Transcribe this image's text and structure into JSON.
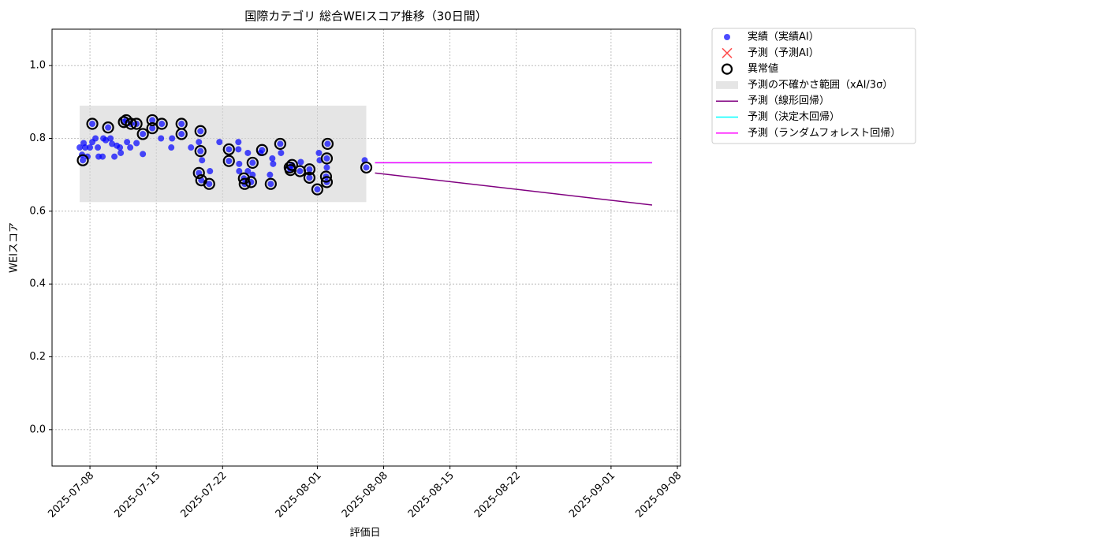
{
  "chart_data": {
    "type": "scatter",
    "title": "国際カテゴリ 総合WEIスコア推移（30日間）",
    "x_label": "評価日",
    "y_label": "WEIスコア",
    "xlim": [
      "2025-07-04 00:00",
      "2025-09-08 08:00"
    ],
    "xticks": [
      "2025-07-08",
      "2025-07-15",
      "2025-07-22",
      "2025-08-01",
      "2025-08-08",
      "2025-08-15",
      "2025-08-22",
      "2025-09-01",
      "2025-09-08"
    ],
    "ylim": [
      -0.1,
      1.1
    ],
    "yticks": [
      {
        "value": 0,
        "label": "0.0"
      },
      0.2,
      0.4,
      0.6,
      0.8,
      {
        "value": 1,
        "label": "1.0"
      }
    ],
    "grid": true,
    "legend": "outside-upper-right",
    "series": [
      {
        "name": "実績（実績AI）",
        "kind": "dot",
        "color": "#0000ff",
        "x": [
          "2025-07-06 22:00",
          "2025-07-07 04:00",
          "2025-07-07 08:00",
          "2025-07-07 12:00",
          "2025-07-07 18:00",
          "2025-07-08 00:00",
          "2025-07-08 06:00",
          "2025-07-08 14:00",
          "2025-07-08 20:00",
          "2025-07-08 22:00",
          "2025-07-09 08:00",
          "2025-07-09 10:00",
          "2025-07-09 16:00",
          "2025-07-10 04:00",
          "2025-07-10 08:00",
          "2025-07-10 14:00",
          "2025-07-10 20:00",
          "2025-07-11 04:00",
          "2025-07-11 06:00",
          "2025-07-11 22:00",
          "2025-07-12 06:00",
          "2025-07-12 22:00",
          "2025-07-13 14:00",
          "2025-07-15 12:00",
          "2025-07-16 14:00",
          "2025-07-16 16:00",
          "2025-07-18 16:00",
          "2025-07-19 12:00",
          "2025-07-19 20:00",
          "2025-07-20 16:00",
          "2025-07-21 16:00",
          "2025-07-23 16:00",
          "2025-07-23 16:00",
          "2025-07-23 18:00",
          "2025-07-23 18:00",
          "2025-07-24 16:00",
          "2025-07-24 16:00",
          "2025-07-25 04:00",
          "2025-07-26 00:00",
          "2025-07-27 00:00",
          "2025-07-27 06:00",
          "2025-07-27 08:00",
          "2025-07-28 04:00",
          "2025-07-30 06:00",
          "2025-08-01 04:00",
          "2025-08-01 06:00",
          "2025-08-02 00:00",
          "2025-08-06 00:00",
          "2025-07-07 06:00",
          "2025-07-08 06:00",
          "2025-07-09 22:00",
          "2025-07-11 14:00",
          "2025-07-11 20:00",
          "2025-07-12 08:00",
          "2025-07-12 22:00",
          "2025-07-13 14:00",
          "2025-07-14 14:00",
          "2025-07-14 14:00",
          "2025-07-15 14:00",
          "2025-07-17 16:00",
          "2025-07-17 16:00",
          "2025-07-19 12:00",
          "2025-07-19 16:00",
          "2025-07-19 16:00",
          "2025-07-19 18:00",
          "2025-07-20 14:00",
          "2025-07-22 16:00",
          "2025-07-22 16:00",
          "2025-07-24 06:00",
          "2025-07-24 08:00",
          "2025-07-25 00:00",
          "2025-07-25 04:00",
          "2025-07-26 04:00",
          "2025-07-27 02:00",
          "2025-07-28 02:00",
          "2025-07-29 02:00",
          "2025-07-29 04:00",
          "2025-07-29 08:00",
          "2025-07-30 04:00",
          "2025-07-31 04:00",
          "2025-07-31 04:00",
          "2025-08-01 00:00",
          "2025-08-01 22:00",
          "2025-08-02 00:00",
          "2025-08-02 00:00",
          "2025-08-02 02:00",
          "2025-08-06 04:00"
        ],
        "values": [
          0.775,
          0.755,
          0.787,
          0.775,
          0.75,
          0.775,
          0.79,
          0.8,
          0.775,
          0.75,
          0.75,
          0.8,
          0.795,
          0.8,
          0.785,
          0.75,
          0.78,
          0.775,
          0.76,
          0.79,
          0.775,
          0.787,
          0.757,
          0.8,
          0.775,
          0.8,
          0.775,
          0.79,
          0.74,
          0.71,
          0.79,
          0.79,
          0.77,
          0.73,
          0.71,
          0.76,
          0.71,
          0.7,
          0.76,
          0.7,
          0.745,
          0.73,
          0.76,
          0.735,
          0.76,
          0.74,
          0.72,
          0.74,
          0.74,
          0.84,
          0.83,
          0.845,
          0.85,
          0.84,
          0.84,
          0.812,
          0.85,
          0.828,
          0.84,
          0.84,
          0.812,
          0.705,
          0.82,
          0.765,
          0.685,
          0.675,
          0.77,
          0.738,
          0.69,
          0.675,
          0.68,
          0.733,
          0.768,
          0.675,
          0.785,
          0.72,
          0.713,
          0.727,
          0.71,
          0.715,
          0.692,
          0.66,
          0.695,
          0.68,
          0.745,
          0.785,
          0.72
        ]
      },
      {
        "name": "予測（予測AI）",
        "kind": "cross",
        "color": "#ff0000",
        "x": [],
        "values": []
      },
      {
        "name": "異常値",
        "kind": "ring",
        "color": "#000000",
        "x": [
          "2025-07-07 06:00",
          "2025-07-08 06:00",
          "2025-07-09 22:00",
          "2025-07-11 14:00",
          "2025-07-11 20:00",
          "2025-07-12 08:00",
          "2025-07-12 22:00",
          "2025-07-13 14:00",
          "2025-07-14 14:00",
          "2025-07-14 14:00",
          "2025-07-15 14:00",
          "2025-07-17 16:00",
          "2025-07-17 16:00",
          "2025-07-19 12:00",
          "2025-07-19 16:00",
          "2025-07-19 16:00",
          "2025-07-19 18:00",
          "2025-07-20 14:00",
          "2025-07-22 16:00",
          "2025-07-22 16:00",
          "2025-07-24 06:00",
          "2025-07-24 08:00",
          "2025-07-25 00:00",
          "2025-07-25 04:00",
          "2025-07-26 04:00",
          "2025-07-27 02:00",
          "2025-07-28 02:00",
          "2025-07-29 02:00",
          "2025-07-29 04:00",
          "2025-07-29 08:00",
          "2025-07-30 04:00",
          "2025-07-31 04:00",
          "2025-07-31 04:00",
          "2025-08-01 00:00",
          "2025-08-01 22:00",
          "2025-08-02 00:00",
          "2025-08-02 00:00",
          "2025-08-02 02:00",
          "2025-08-06 04:00"
        ],
        "values": [
          0.74,
          0.84,
          0.83,
          0.845,
          0.85,
          0.84,
          0.84,
          0.812,
          0.85,
          0.828,
          0.84,
          0.84,
          0.812,
          0.705,
          0.82,
          0.765,
          0.685,
          0.675,
          0.77,
          0.738,
          0.69,
          0.675,
          0.68,
          0.733,
          0.768,
          0.675,
          0.785,
          0.72,
          0.713,
          0.727,
          0.71,
          0.715,
          0.692,
          0.66,
          0.695,
          0.68,
          0.745,
          0.785,
          0.72
        ]
      },
      {
        "name": "予測の不確かさ範囲（xAI/3σ）",
        "kind": "band",
        "color": "#d3d3d3",
        "x": [
          "2025-07-06 22:00",
          "2025-08-06 04:00"
        ],
        "lower": 0.625,
        "upper": 0.89
      },
      {
        "name": "予測（線形回帰）",
        "kind": "line",
        "color": "#800080",
        "x": [
          "2025-08-07 02:00",
          "2025-09-05 08:00"
        ],
        "values": [
          0.705,
          0.617
        ]
      },
      {
        "name": "予測（決定木回帰）",
        "kind": "line",
        "color": "#00ffff",
        "x": [
          "2025-08-07 02:00",
          "2025-09-05 08:00"
        ],
        "values": [
          0.733,
          0.733
        ]
      },
      {
        "name": "予測（ランダムフォレスト回帰）",
        "kind": "line",
        "color": "#ff00ff",
        "x": [
          "2025-08-07 02:00",
          "2025-09-05 08:00"
        ],
        "values": [
          0.733,
          0.733
        ]
      }
    ]
  }
}
